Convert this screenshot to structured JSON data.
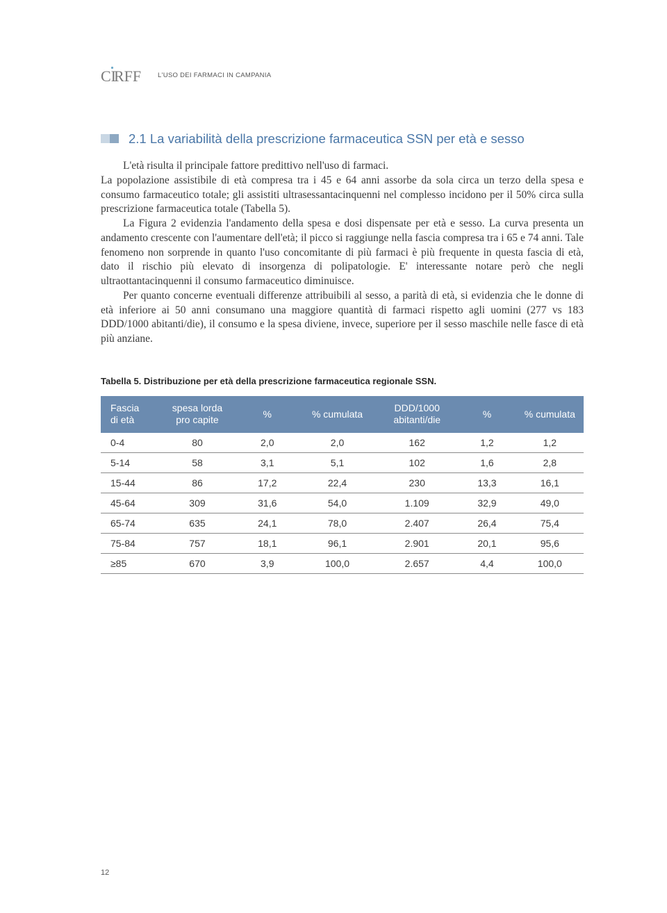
{
  "header": {
    "running_title": "L'USO DEI FARMACI IN CAMPANIA",
    "logo_text": "CIRFF"
  },
  "section": {
    "number": "2.1",
    "title": "La variabilità della prescrizione farmaceutica SSN per età e sesso"
  },
  "paragraphs": {
    "p1": "L'età risulta il principale fattore predittivo nell'uso di farmaci.",
    "p2": "La popolazione assistibile di età compresa tra i 45 e 64 anni assorbe da sola circa un terzo della spesa e consumo farmaceutico totale; gli assistiti ultrasessantacinquenni nel complesso incidono per il 50% circa sulla prescrizione farmaceutica totale (Tabella 5).",
    "p3": "La Figura 2 evidenzia l'andamento della spesa e dosi dispensate per età e sesso. La curva presenta un andamento crescente con l'aumentare dell'età; il picco si raggiunge nella fascia compresa tra i 65 e 74 anni. Tale fenomeno non sorprende in quanto l'uso concomitante di più farmaci è più frequente in questa fascia di età, dato il rischio più elevato di insorgenza di polipatologie. E' interessante notare però che negli ultraottantacinquenni il consumo farmaceutico diminuisce.",
    "p4": "Per quanto concerne eventuali differenze attribuibili al sesso, a parità di età, si evidenzia che le donne di età inferiore ai 50 anni consumano una maggiore quantità di farmaci rispetto agli uomini (277 vs 183 DDD/1000 abitanti/die), il consumo e la spesa diviene, invece, superiore per il sesso maschile nelle fasce di età più anziane."
  },
  "table": {
    "caption": "Tabella 5. Distribuzione per età della prescrizione farmaceutica regionale SSN.",
    "columns": [
      "Fascia di età",
      "spesa lorda pro capite",
      "%",
      "% cumulata",
      "DDD/1000 abitanti/die",
      "%",
      "% cumulata"
    ],
    "col_widths": [
      "12%",
      "16%",
      "13%",
      "16%",
      "17%",
      "12%",
      "14%"
    ],
    "header_bg": "#6b8bb0",
    "header_fg": "#ffffff",
    "row_border": "#8a8a8a",
    "rows": [
      [
        "0-4",
        "80",
        "2,0",
        "2,0",
        "162",
        "1,2",
        "1,2"
      ],
      [
        "5-14",
        "58",
        "3,1",
        "5,1",
        "102",
        "1,6",
        "2,8"
      ],
      [
        "15-44",
        "86",
        "17,2",
        "22,4",
        "230",
        "13,3",
        "16,1"
      ],
      [
        "45-64",
        "309",
        "31,6",
        "54,0",
        "1.109",
        "32,9",
        "49,0"
      ],
      [
        "65-74",
        "635",
        "24,1",
        "78,0",
        "2.407",
        "26,4",
        "75,4"
      ],
      [
        "75-84",
        "757",
        "18,1",
        "96,1",
        "2.901",
        "20,1",
        "95,6"
      ],
      [
        "≥85",
        "670",
        "3,9",
        "100,0",
        "2.657",
        "4,4",
        "100,0"
      ]
    ]
  },
  "page_number": "12",
  "colors": {
    "section_title": "#4a77a8",
    "marker_light": "#c9d7e4",
    "marker_dark": "#8da8c2",
    "body_text": "#3a3a3a"
  }
}
